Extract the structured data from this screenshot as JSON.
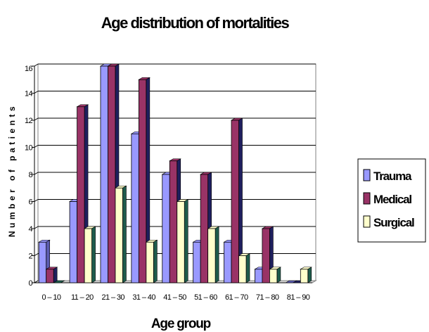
{
  "chart_data": {
    "type": "bar",
    "title": "Age distribution of mortalities",
    "xlabel": "Age group",
    "ylabel": "Number of patients",
    "categories": [
      "0 – 10",
      "11 – 20",
      "21 – 30",
      "31 – 40",
      "41 – 50",
      "51 – 60",
      "61 – 70",
      "71 – 80",
      "81 – 90"
    ],
    "ylim": [
      0,
      16
    ],
    "yticks": [
      "0",
      "2",
      "4",
      "6",
      "8",
      "10",
      "12",
      "14",
      "16"
    ],
    "grid": true,
    "legend_position": "right",
    "series": [
      {
        "name": "Trauma",
        "values": [
          3,
          6,
          16,
          11,
          8,
          3,
          3,
          1,
          0
        ],
        "color": "#9999ff",
        "side_color": "#5c5cb0"
      },
      {
        "name": "Medical",
        "values": [
          1,
          13,
          16,
          15,
          9,
          8,
          12,
          4,
          0
        ],
        "color": "#993366",
        "side_color": "#1f1f5e"
      },
      {
        "name": "Surgical",
        "values": [
          0,
          4,
          7,
          3,
          6,
          4,
          2,
          1,
          1
        ],
        "color": "#ffffcc",
        "side_color": "#1f5c4c"
      }
    ]
  }
}
